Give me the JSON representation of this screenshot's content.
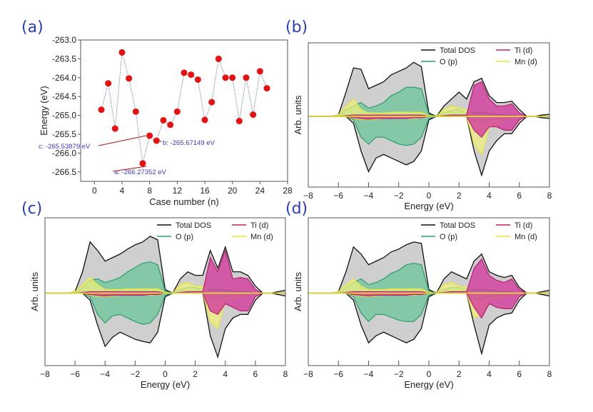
{
  "panel_labels": [
    "(a)",
    "(b)",
    "(c)",
    "(d)"
  ],
  "colors": {
    "points": "#e81010",
    "line": "#7080a0",
    "annotation": "#3a3ad0",
    "arrow": "#a01818",
    "total": "#111111",
    "total_fill": "#cfcfcf",
    "o_p": "#2a9d6a",
    "o_p_fill": "#6cc59a",
    "ti_d": "#b8206e",
    "ti_d_fill": "#d23b9c",
    "mn_d": "#e6e638",
    "mn_d_fill": "#f2f27a",
    "panel_label": "#2a3cc0"
  },
  "chart_data": [
    {
      "type": "scatter",
      "panel": "(a)",
      "xlabel": "Case number (n)",
      "ylabel": "Energy (eV)",
      "xlim": [
        -2,
        28
      ],
      "ylim": [
        -266.75,
        -263.0
      ],
      "xticks": [
        0,
        4,
        8,
        12,
        16,
        20,
        24,
        28
      ],
      "yticks": [
        -263.0,
        -263.5,
        -264.0,
        -264.5,
        -265.0,
        -265.5,
        -266.0,
        -266.5
      ],
      "x": [
        1,
        2,
        3,
        4,
        5,
        6,
        7,
        8,
        9,
        10,
        11,
        12,
        13,
        14,
        15,
        16,
        17,
        18,
        19,
        20,
        21,
        22,
        23,
        24,
        25
      ],
      "y": [
        -264.85,
        -264.15,
        -265.35,
        -263.33,
        -264.02,
        -264.9,
        -266.27352,
        -265.53879,
        -265.67149,
        -265.13,
        -265.25,
        -264.9,
        -263.87,
        -263.92,
        -264.05,
        -265.12,
        -264.65,
        -263.5,
        -264.0,
        -264.0,
        -265.15,
        -264.0,
        -264.98,
        -263.83,
        -264.28
      ],
      "annotations": [
        {
          "text": "a: -266.27352 eV",
          "x": 7,
          "y": -266.27352
        },
        {
          "text": "b: -265.67149 eV",
          "x": 9,
          "y": -265.67149
        },
        {
          "text": "c: -265.53879 eV",
          "x": 8,
          "y": -265.53879
        }
      ]
    },
    {
      "type": "area",
      "panel": "(b)",
      "xlabel": "Energy (eV)",
      "ylabel": "Arb. units",
      "xlim": [
        -8,
        8
      ],
      "ylim": [
        -1,
        1
      ],
      "xticks": [
        -8,
        -6,
        -4,
        -2,
        0,
        2,
        4,
        6,
        8
      ],
      "legend": [
        "Total DOS",
        "O (p)",
        "Ti (d)",
        "Mn (d)"
      ],
      "legend_position": "top-right",
      "x": [
        -8,
        -7.5,
        -7,
        -6.5,
        -6,
        -5.5,
        -5,
        -4.5,
        -4,
        -3.5,
        -3,
        -2.5,
        -2,
        -1.5,
        -1,
        -0.5,
        0,
        0.5,
        1,
        1.5,
        2,
        2.5,
        3,
        3.5,
        4,
        4.5,
        5,
        5.5,
        6,
        6.5,
        7,
        7.5,
        8
      ],
      "series": [
        {
          "name": "Total DOS",
          "up": [
            0,
            0,
            0,
            0,
            0.02,
            0.35,
            0.7,
            0.68,
            0.4,
            0.45,
            0.5,
            0.6,
            0.65,
            0.7,
            0.78,
            0.72,
            0.05,
            0,
            0.15,
            0.25,
            0.35,
            0.25,
            0.5,
            0.55,
            0.3,
            0.2,
            0.2,
            0.22,
            0.1,
            0,
            0,
            0.02,
            0.03
          ],
          "down": [
            0,
            0,
            0,
            0,
            0,
            0,
            -0.1,
            -0.5,
            -0.8,
            -0.6,
            -0.55,
            -0.6,
            -0.65,
            -0.7,
            -0.65,
            -0.5,
            -0.05,
            0,
            0,
            0,
            0,
            0,
            -0.5,
            -0.85,
            -0.5,
            -0.35,
            -0.25,
            -0.25,
            -0.1,
            0,
            0,
            -0.02,
            -0.03
          ]
        },
        {
          "name": "O (p)",
          "up": [
            0,
            0,
            0,
            0,
            0,
            0.1,
            0.15,
            0.2,
            0.12,
            0.15,
            0.2,
            0.3,
            0.35,
            0.42,
            0.42,
            0.4,
            0.03,
            0,
            0.05,
            0.08,
            0.1,
            0.05,
            0.05,
            0.06,
            0.04,
            0.03,
            0.02,
            0.02,
            0,
            0,
            0,
            0,
            0
          ],
          "down": [
            0,
            0,
            0,
            0,
            0,
            0,
            -0.05,
            -0.3,
            -0.4,
            -0.3,
            -0.3,
            -0.35,
            -0.4,
            -0.42,
            -0.4,
            -0.3,
            -0.03,
            0,
            0,
            0,
            0,
            0,
            -0.08,
            -0.1,
            -0.05,
            -0.04,
            -0.03,
            -0.02,
            0,
            0,
            0,
            0,
            0
          ]
        },
        {
          "name": "Ti (d)",
          "up": [
            0,
            0,
            0,
            0,
            0,
            0.01,
            0.02,
            0.02,
            0.02,
            0.02,
            0.02,
            0.02,
            0.02,
            0.02,
            0.02,
            0.02,
            0,
            0,
            0.01,
            0.02,
            0.02,
            0.02,
            0.45,
            0.5,
            0.25,
            0.15,
            0.15,
            0.18,
            0.05,
            0,
            0,
            0,
            0
          ],
          "down": [
            0,
            0,
            0,
            0,
            0,
            0,
            -0.02,
            -0.03,
            -0.04,
            -0.03,
            -0.03,
            -0.03,
            -0.03,
            -0.03,
            -0.02,
            -0.02,
            0,
            0,
            0,
            0,
            0,
            0,
            -0.2,
            -0.3,
            -0.15,
            -0.15,
            -0.2,
            -0.2,
            -0.05,
            0,
            0,
            0,
            0
          ]
        },
        {
          "name": "Mn (d)",
          "up": [
            0,
            0,
            0,
            0,
            0.02,
            0.15,
            0.25,
            0.1,
            0.05,
            0.05,
            0.05,
            0.06,
            0.06,
            0.06,
            0.06,
            0.06,
            0.01,
            0,
            0.1,
            0.15,
            0.12,
            0.1,
            0.02,
            0.02,
            0.02,
            0.01,
            0.01,
            0.01,
            0,
            0,
            0,
            0,
            0
          ],
          "down": [
            0,
            0,
            0,
            0,
            0,
            0,
            -0.03,
            -0.04,
            -0.05,
            -0.04,
            -0.03,
            -0.03,
            -0.03,
            -0.03,
            -0.03,
            -0.02,
            0,
            0,
            0,
            0,
            0,
            0,
            -0.4,
            -0.55,
            -0.15,
            -0.15,
            -0.05,
            -0.03,
            0,
            0,
            0,
            0,
            0
          ]
        }
      ]
    },
    {
      "type": "area",
      "panel": "(c)",
      "xlabel": "Energy (eV)",
      "ylabel": "Arb. units",
      "xlim": [
        -8,
        8
      ],
      "ylim": [
        -1,
        1
      ],
      "xticks": [
        -8,
        -6,
        -4,
        -2,
        0,
        2,
        4,
        6,
        8
      ],
      "legend": [
        "Total DOS",
        "O (p)",
        "Ti (d)",
        "Mn (d)"
      ],
      "legend_position": "top-right",
      "x": [
        -8,
        -7.5,
        -7,
        -6.5,
        -6,
        -5.5,
        -5,
        -4.5,
        -4,
        -3.5,
        -3,
        -2.5,
        -2,
        -1.5,
        -1,
        -0.5,
        0,
        0.5,
        1,
        1.5,
        2,
        2.5,
        3,
        3.5,
        4,
        4.5,
        5,
        5.5,
        6,
        6.5,
        7,
        7.5,
        8
      ],
      "series": [
        {
          "name": "Total DOS",
          "up": [
            0,
            0,
            0,
            0,
            0.02,
            0.3,
            0.72,
            0.6,
            0.45,
            0.5,
            0.55,
            0.62,
            0.68,
            0.72,
            0.8,
            0.75,
            0.05,
            0,
            0.2,
            0.3,
            0.25,
            0.25,
            0.6,
            0.35,
            0.65,
            0.3,
            0.3,
            0.25,
            0.1,
            0,
            0,
            0.02,
            0.04
          ],
          "down": [
            0,
            0,
            0,
            0,
            0,
            0,
            -0.1,
            -0.45,
            -0.75,
            -0.62,
            -0.55,
            -0.6,
            -0.65,
            -0.68,
            -0.7,
            -0.55,
            -0.05,
            0,
            0,
            0,
            0,
            0,
            -0.6,
            -0.9,
            -0.5,
            -0.35,
            -0.3,
            -0.3,
            -0.1,
            0,
            0,
            -0.02,
            -0.04
          ]
        },
        {
          "name": "O (p)",
          "up": [
            0,
            0,
            0,
            0,
            0,
            0.08,
            0.18,
            0.2,
            0.15,
            0.18,
            0.22,
            0.3,
            0.36,
            0.42,
            0.44,
            0.4,
            0.03,
            0,
            0.05,
            0.08,
            0.08,
            0.05,
            0.05,
            0.05,
            0.04,
            0.03,
            0.02,
            0.02,
            0,
            0,
            0,
            0,
            0
          ],
          "down": [
            0,
            0,
            0,
            0,
            0,
            0,
            -0.05,
            -0.3,
            -0.42,
            -0.32,
            -0.3,
            -0.35,
            -0.4,
            -0.44,
            -0.42,
            -0.3,
            -0.03,
            0,
            0,
            0,
            0,
            0,
            -0.08,
            -0.1,
            -0.05,
            -0.04,
            -0.03,
            -0.02,
            0,
            0,
            0,
            0,
            0
          ]
        },
        {
          "name": "Ti (d)",
          "up": [
            0,
            0,
            0,
            0,
            0,
            0.01,
            0.02,
            0.02,
            0.02,
            0.02,
            0.02,
            0.02,
            0.02,
            0.02,
            0.02,
            0.02,
            0,
            0,
            0.01,
            0.02,
            0.02,
            0.02,
            0.5,
            0.3,
            0.6,
            0.2,
            0.22,
            0.2,
            0.05,
            0,
            0,
            0,
            0
          ],
          "down": [
            0,
            0,
            0,
            0,
            0,
            0,
            -0.02,
            -0.03,
            -0.04,
            -0.03,
            -0.03,
            -0.03,
            -0.03,
            -0.03,
            -0.02,
            -0.02,
            0,
            0,
            0,
            0,
            0,
            0,
            -0.25,
            -0.3,
            -0.15,
            -0.2,
            -0.25,
            -0.25,
            -0.05,
            0,
            0,
            0,
            0
          ]
        },
        {
          "name": "Mn (d)",
          "up": [
            0,
            0,
            0,
            0,
            0.02,
            0.12,
            0.22,
            0.12,
            0.05,
            0.05,
            0.05,
            0.06,
            0.06,
            0.06,
            0.06,
            0.06,
            0.01,
            0,
            0.12,
            0.15,
            0.1,
            0.1,
            0.02,
            0.02,
            0.02,
            0.01,
            0.01,
            0.01,
            0,
            0,
            0,
            0,
            0
          ],
          "down": [
            0,
            0,
            0,
            0,
            0,
            0,
            -0.03,
            -0.04,
            -0.05,
            -0.04,
            -0.03,
            -0.03,
            -0.03,
            -0.03,
            -0.03,
            -0.02,
            0,
            0,
            0,
            0,
            0,
            0,
            -0.4,
            -0.5,
            -0.1,
            -0.1,
            -0.05,
            -0.03,
            0,
            0,
            0,
            0,
            0
          ]
        }
      ]
    },
    {
      "type": "area",
      "panel": "(d)",
      "xlabel": "Energy (eV)",
      "ylabel": "Arb. units",
      "xlim": [
        -8,
        8
      ],
      "ylim": [
        -1,
        1
      ],
      "xticks": [
        -8,
        -6,
        -4,
        -2,
        0,
        2,
        4,
        6,
        8
      ],
      "legend": [
        "Total DOS",
        "O (p)",
        "Ti (d)",
        "Mn (d)"
      ],
      "legend_position": "top-right",
      "x": [
        -8,
        -7.5,
        -7,
        -6.5,
        -6,
        -5.5,
        -5,
        -4.5,
        -4,
        -3.5,
        -3,
        -2.5,
        -2,
        -1.5,
        -1,
        -0.5,
        0,
        0.5,
        1,
        1.5,
        2,
        2.5,
        3,
        3.5,
        4,
        4.5,
        5,
        5.5,
        6,
        6.5,
        7,
        7.5,
        8
      ],
      "series": [
        {
          "name": "Total DOS",
          "up": [
            0,
            0,
            0,
            0,
            0.02,
            0.3,
            0.65,
            0.55,
            0.4,
            0.45,
            0.5,
            0.58,
            0.62,
            0.68,
            0.72,
            0.7,
            0.05,
            0,
            0.2,
            0.3,
            0.25,
            0.2,
            0.45,
            0.55,
            0.3,
            0.25,
            0.22,
            0.25,
            0.08,
            0,
            0,
            0.02,
            0.04
          ],
          "down": [
            0,
            0,
            0,
            0,
            0,
            0,
            -0.1,
            -0.45,
            -0.7,
            -0.6,
            -0.55,
            -0.6,
            -0.65,
            -0.7,
            -0.65,
            -0.5,
            -0.05,
            0,
            0,
            0,
            0,
            0,
            -0.45,
            -0.85,
            -0.45,
            -0.35,
            -0.3,
            -0.28,
            -0.1,
            0,
            0,
            -0.02,
            -0.04
          ]
        },
        {
          "name": "O (p)",
          "up": [
            0,
            0,
            0,
            0,
            0,
            0.08,
            0.15,
            0.2,
            0.12,
            0.15,
            0.2,
            0.28,
            0.32,
            0.4,
            0.42,
            0.4,
            0.03,
            0,
            0.05,
            0.08,
            0.08,
            0.05,
            0.05,
            0.05,
            0.04,
            0.03,
            0.02,
            0.02,
            0,
            0,
            0,
            0,
            0
          ],
          "down": [
            0,
            0,
            0,
            0,
            0,
            0,
            -0.05,
            -0.28,
            -0.4,
            -0.3,
            -0.3,
            -0.34,
            -0.38,
            -0.4,
            -0.4,
            -0.3,
            -0.03,
            0,
            0,
            0,
            0,
            0,
            -0.08,
            -0.1,
            -0.05,
            -0.04,
            -0.03,
            -0.02,
            0,
            0,
            0,
            0,
            0
          ]
        },
        {
          "name": "Ti (d)",
          "up": [
            0,
            0,
            0,
            0,
            0,
            0.01,
            0.02,
            0.02,
            0.02,
            0.02,
            0.02,
            0.02,
            0.02,
            0.02,
            0.02,
            0.02,
            0,
            0,
            0.01,
            0.02,
            0.02,
            0.02,
            0.35,
            0.48,
            0.25,
            0.18,
            0.15,
            0.2,
            0.05,
            0,
            0,
            0,
            0
          ],
          "down": [
            0,
            0,
            0,
            0,
            0,
            0,
            -0.02,
            -0.03,
            -0.04,
            -0.03,
            -0.03,
            -0.03,
            -0.03,
            -0.03,
            -0.02,
            -0.02,
            0,
            0,
            0,
            0,
            0,
            0,
            -0.2,
            -0.35,
            -0.15,
            -0.2,
            -0.22,
            -0.22,
            -0.05,
            0,
            0,
            0,
            0
          ]
        },
        {
          "name": "Mn (d)",
          "up": [
            0,
            0,
            0,
            0,
            0.02,
            0.12,
            0.2,
            0.1,
            0.05,
            0.05,
            0.05,
            0.06,
            0.06,
            0.06,
            0.06,
            0.06,
            0.01,
            0,
            0.12,
            0.15,
            0.1,
            0.08,
            0.02,
            0.02,
            0.02,
            0.01,
            0.01,
            0.01,
            0,
            0,
            0,
            0,
            0
          ],
          "down": [
            0,
            0,
            0,
            0,
            0,
            0,
            -0.03,
            -0.04,
            -0.05,
            -0.04,
            -0.03,
            -0.03,
            -0.03,
            -0.03,
            -0.03,
            -0.02,
            0,
            0,
            0,
            0,
            0,
            0,
            -0.35,
            -0.3,
            -0.1,
            -0.1,
            -0.05,
            -0.03,
            0,
            0,
            0,
            0,
            0
          ]
        }
      ]
    }
  ]
}
